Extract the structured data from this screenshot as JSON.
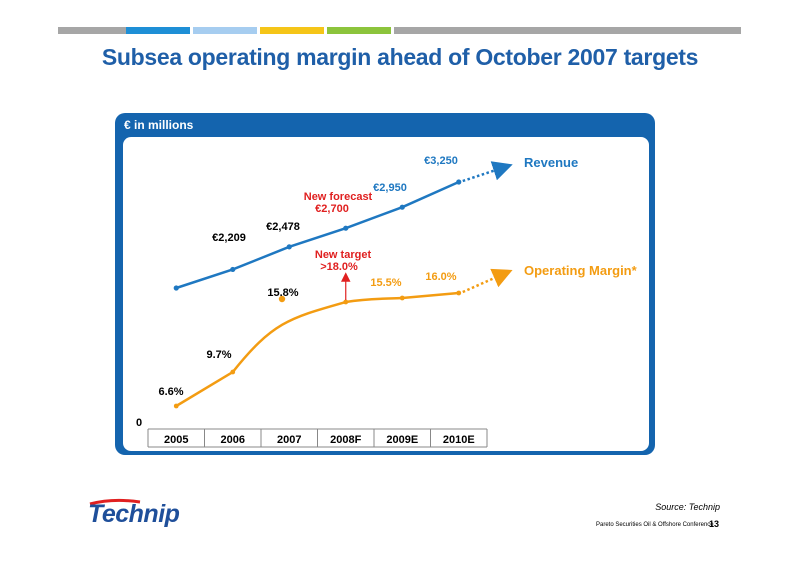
{
  "slide": {
    "title": "Subsea operating margin ahead of October 2007 targets",
    "stripe_colors": [
      "#a6a6a6",
      "#1e8fd6",
      "#a6cdf0",
      "#f5c518",
      "#8cc43c",
      "#a6a6a6"
    ],
    "panel_label": "€ in millions",
    "source": "Source:  Technip",
    "footer": "Pareto Securities Oil & Offshore Conference",
    "page_number": "13",
    "logo_text": "Technip"
  },
  "chart_data": {
    "type": "line",
    "categories": [
      "2005",
      "2006",
      "2007",
      "2008F",
      "2009E",
      "2010E"
    ],
    "series": [
      {
        "name": "Revenue",
        "color": "#1f78c1",
        "values": [
          null,
          2209,
          2478,
          2700,
          2950,
          3250
        ],
        "labels": [
          "",
          "€2,209",
          "€2,478",
          "",
          "€2,950",
          "€3,250"
        ]
      },
      {
        "name": "Operating Margin*",
        "color": "#f39c12",
        "values": [
          6.6,
          9.7,
          15.8,
          18.0,
          15.5,
          16.0
        ],
        "labels": [
          "6.6%",
          "9.7%",
          "15.8%",
          "",
          "15.5%",
          "16.0%"
        ]
      }
    ],
    "annotations": {
      "new_forecast": "New forecast",
      "new_forecast_value": "€2,700",
      "new_target": "New target",
      "new_target_value": ">18.0%"
    },
    "y_zero_label": "0",
    "legend": [
      "Revenue",
      "Operating Margin*"
    ]
  }
}
